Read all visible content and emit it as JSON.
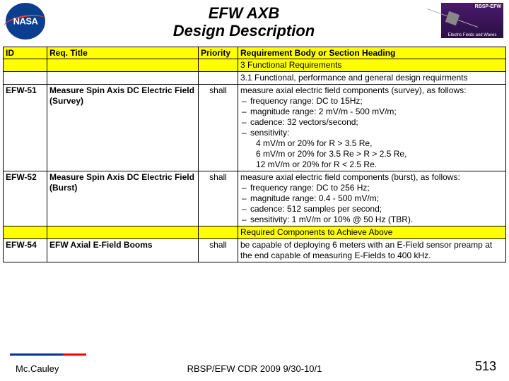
{
  "header": {
    "title_line1": "EFW AXB",
    "title_line2": "Design Description",
    "badge_top": "RBSP-EFW",
    "badge_sub": "Electric Fields and Waves"
  },
  "table": {
    "headers": {
      "id": "ID",
      "title": "Req. Title",
      "priority": "Priority",
      "body": "Requirement Body or Section Heading"
    },
    "r1_body": "3 Functional Requirements",
    "r2_body": "3.1 Functional, performance and general design requirments",
    "efw51": {
      "id": "EFW-51",
      "title": "Measure Spin Axis DC Electric Field (Survey)",
      "pri": "shall",
      "lead": "measure axial electric field components (survey), as follows:",
      "b1": "frequency range:  DC to 15Hz;",
      "b2": "magnitude range:  2 mV/m - 500 mV/m;",
      "b3": "cadence:  32 vectors/second;",
      "b4": "sensitivity:",
      "s1": "4 mV/m or 20% for R > 3.5 Re,",
      "s2": "6 mV/m or 20% for 3.5 Re > R > 2.5 Re,",
      "s3": "12 mV/m or 20% for R < 2.5 Re."
    },
    "efw52": {
      "id": "EFW-52",
      "title": "Measure Spin Axis DC Electric Field (Burst)",
      "pri": "shall",
      "lead": "measure axial electric field components (burst), as follows:",
      "b1": "frequency range:  DC to 256 Hz;",
      "b2": "magnitude range:  0.4 - 500 mV/m;",
      "b3": "cadence:  512 samples per second;",
      "b4": "sensitivity:  1 mV/m or 10% @ 50 Hz (TBR)."
    },
    "r_achieve": "Required Components to Achieve Above",
    "efw54": {
      "id": "EFW-54",
      "title": "EFW Axial E-Field Booms",
      "pri": "shall",
      "body": "be capable of deploying 6 meters with an E-Field sensor preamp at the end capable of measuring E-Fields to 400 kHz."
    }
  },
  "footer": {
    "left": "Mc.Cauley",
    "center": "RBSP/EFW CDR 2009 9/30-10/1",
    "page": "513"
  }
}
